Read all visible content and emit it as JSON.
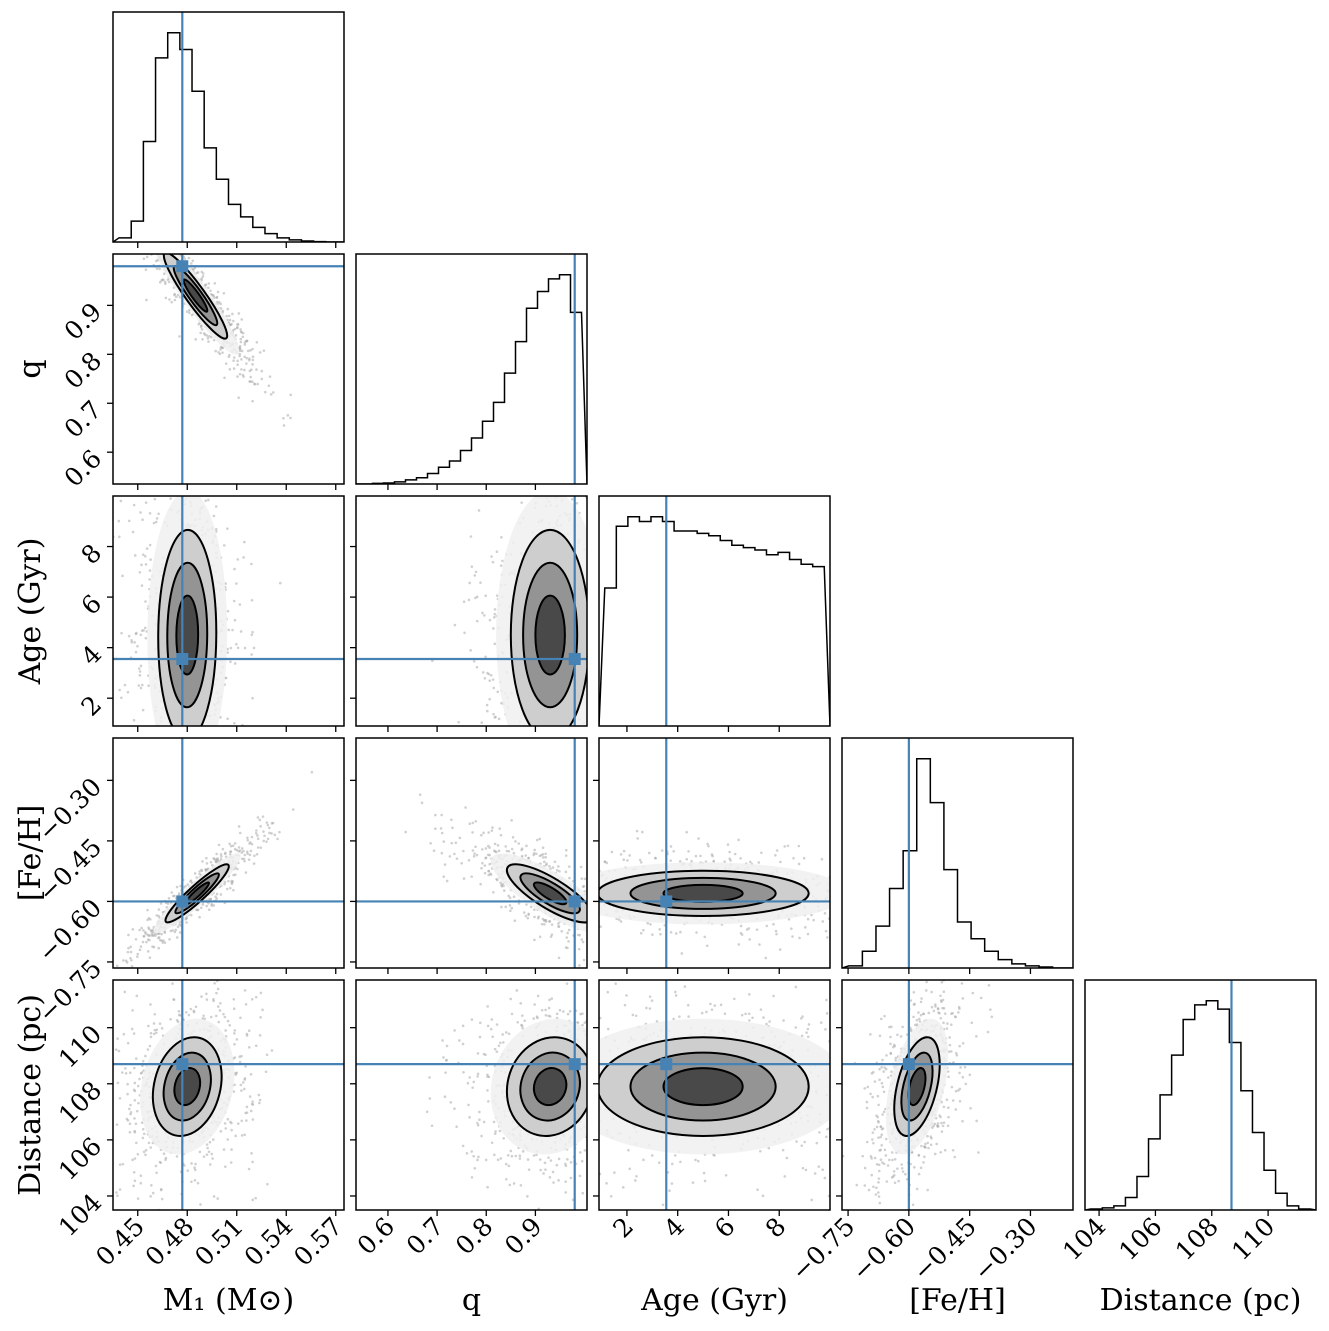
{
  "chart_data": {
    "type": "corner",
    "title": "",
    "truth_color": "#4682b4",
    "parameters": [
      {
        "label": "M₁ (M⊙)",
        "short_label": "",
        "ticks": [
          0.45,
          0.48,
          0.51,
          0.54,
          0.57
        ],
        "tick_labels": [
          "0.45",
          "0.48",
          "0.51",
          "0.54",
          "0.57"
        ],
        "range": [
          0.435,
          0.575
        ],
        "truth": 0.477
      },
      {
        "label": "q",
        "short_label": "q",
        "ticks": [
          0.6,
          0.7,
          0.8,
          0.9
        ],
        "tick_labels": [
          "0.6",
          "0.7",
          "0.8",
          "0.9"
        ],
        "range": [
          0.535,
          1.005
        ],
        "truth": 0.98
      },
      {
        "label": "Age (Gyr)",
        "short_label": "Age (Gyr)",
        "ticks": [
          2,
          4,
          6,
          8
        ],
        "tick_labels": [
          "2",
          "4",
          "6",
          "8"
        ],
        "range": [
          0.9,
          10.0
        ],
        "truth": 3.55
      },
      {
        "label": "[Fe/H]",
        "short_label": "[Fe/H]",
        "ticks": [
          -0.75,
          -0.6,
          -0.45,
          -0.3
        ],
        "tick_labels": [
          "−0.75",
          "−0.60",
          "−0.45",
          "−0.30"
        ],
        "range": [
          -0.765,
          -0.195
        ],
        "truth": -0.6
      },
      {
        "label": "Distance (pc)",
        "short_label": "Distance (pc)",
        "ticks": [
          104,
          106,
          108,
          110
        ],
        "tick_labels": [
          "104",
          "106",
          "108",
          "110"
        ],
        "range": [
          103.5,
          111.7
        ],
        "truth": 108.7
      }
    ],
    "histograms": [
      {
        "param": 0,
        "counts": [
          2,
          10,
          48,
          88,
          100,
          92,
          72,
          45,
          30,
          18,
          12,
          7,
          4,
          2,
          1,
          0.5,
          0.2,
          0
        ]
      },
      {
        "param": 1,
        "counts": [
          0,
          0.3,
          0.5,
          1,
          2,
          3,
          5,
          8,
          11,
          16,
          22,
          30,
          39,
          53,
          68,
          84,
          92,
          98,
          100,
          82
        ]
      },
      {
        "param": 2,
        "counts": [
          58,
          84,
          88,
          86,
          88,
          86,
          82,
          82,
          81,
          80,
          78,
          76,
          75,
          74,
          72,
          73,
          70,
          68,
          67
        ]
      },
      {
        "param": 3,
        "counts": [
          1,
          8,
          20,
          38,
          56,
          100,
          79,
          47,
          22,
          14,
          8,
          4,
          2,
          1,
          0.5,
          0
        ]
      },
      {
        "param": 4,
        "counts": [
          0.5,
          1,
          2,
          6,
          16,
          34,
          55,
          74,
          91,
          98,
          100,
          96,
          80,
          57,
          37,
          19,
          8,
          2,
          0.5
        ]
      }
    ],
    "correlations": [
      {
        "x": 0,
        "y": 1,
        "center": [
          0.485,
          0.92
        ],
        "sigma": [
          0.012,
          0.055
        ],
        "rho": -0.93
      },
      {
        "x": 0,
        "y": 2,
        "center": [
          0.48,
          4.5
        ],
        "sigma": [
          0.011,
          2.6
        ],
        "rho": 0.02
      },
      {
        "x": 1,
        "y": 2,
        "center": [
          0.93,
          4.5
        ],
        "sigma": [
          0.05,
          2.6
        ],
        "rho": 0.0
      },
      {
        "x": 0,
        "y": 3,
        "center": [
          0.486,
          -0.58
        ],
        "sigma": [
          0.012,
          0.045
        ],
        "rho": 0.93
      },
      {
        "x": 1,
        "y": 3,
        "center": [
          0.93,
          -0.58
        ],
        "sigma": [
          0.055,
          0.045
        ],
        "rho": -0.8
      },
      {
        "x": 2,
        "y": 3,
        "center": [
          5.0,
          -0.58
        ],
        "sigma": [
          2.6,
          0.035
        ],
        "rho": 0.0
      },
      {
        "x": 0,
        "y": 4,
        "center": [
          0.48,
          107.9
        ],
        "sigma": [
          0.013,
          1.1
        ],
        "rho": 0.2
      },
      {
        "x": 1,
        "y": 4,
        "center": [
          0.93,
          107.9
        ],
        "sigma": [
          0.055,
          1.1
        ],
        "rho": 0.1
      },
      {
        "x": 2,
        "y": 4,
        "center": [
          5.0,
          107.9
        ],
        "sigma": [
          2.6,
          1.1
        ],
        "rho": 0.0
      },
      {
        "x": 3,
        "y": 4,
        "center": [
          -0.58,
          107.9
        ],
        "sigma": [
          0.035,
          1.1
        ],
        "rho": 0.45
      }
    ]
  }
}
